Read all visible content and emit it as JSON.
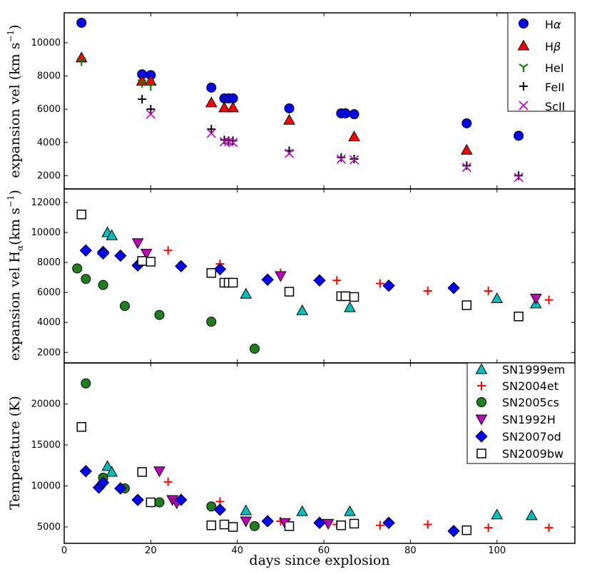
{
  "figure": {
    "xlabel": "days since explosion",
    "x_ticks": [
      "0",
      "20",
      "40",
      "60",
      "80",
      "100"
    ],
    "xlim": [
      0,
      118
    ]
  },
  "colors": {
    "blue": "#0000ff",
    "red": "#ff0000",
    "green": "#007f00",
    "black": "#000000",
    "magenta": "#bf00bf",
    "cyan": "#00bfbf",
    "purple": "#bf00bf",
    "green_fill": "#1f7f1f",
    "white": "#ffffff"
  },
  "chart_data": [
    {
      "type": "scatter",
      "title": "",
      "ylabel_main": "expansion vel (km s",
      "ylabel_sup": "−1",
      "ylabel_tail": ")",
      "ylim": [
        1200,
        11800
      ],
      "y_ticks": [
        "2000",
        "4000",
        "6000",
        "8000",
        "10000"
      ],
      "legend_position": "top-right",
      "series": [
        {
          "name": "Hα",
          "label_main": "H",
          "label_greek": "α",
          "marker": "circle",
          "color": "#0000ff",
          "x": [
            4,
            18,
            20,
            34,
            37,
            38,
            39,
            52,
            64,
            65,
            67,
            93,
            105
          ],
          "y": [
            11200,
            8100,
            8050,
            7300,
            6650,
            6650,
            6650,
            6050,
            5750,
            5750,
            5700,
            5150,
            4400
          ]
        },
        {
          "name": "Hβ",
          "label_main": "H",
          "label_greek": "β",
          "marker": "triangle",
          "color": "#ff0000",
          "x": [
            4,
            18,
            20,
            34,
            37,
            39,
            52,
            67,
            93
          ],
          "y": [
            9100,
            7700,
            7700,
            6400,
            6100,
            6100,
            5350,
            4350,
            3550
          ]
        },
        {
          "name": "HeI",
          "label_main": "HeI",
          "marker": "tri_down",
          "color": "#007f00",
          "x": [
            4,
            18,
            20
          ],
          "y": [
            8900,
            7600,
            7400
          ]
        },
        {
          "name": "FeII",
          "label_main": "FeII",
          "marker": "plus",
          "color": "#000000",
          "x": [
            18,
            20,
            34,
            37,
            38,
            39,
            52,
            64,
            67,
            93,
            105
          ],
          "y": [
            6600,
            6000,
            4800,
            4150,
            4100,
            4100,
            3500,
            3100,
            3000,
            2600,
            2000
          ]
        },
        {
          "name": "ScII",
          "label_main": "ScII",
          "marker": "x",
          "color": "#bf00bf",
          "x": [
            20,
            34,
            37,
            38,
            39,
            52,
            64,
            67,
            93,
            105
          ],
          "y": [
            5700,
            4550,
            4050,
            4050,
            4000,
            3350,
            3000,
            2950,
            2500,
            1900
          ]
        }
      ]
    },
    {
      "type": "scatter",
      "title": "",
      "ylabel_main": "expansion vel H",
      "ylabel_sub": "α",
      "ylabel_tail": "(km s",
      "ylabel_sup": "−1",
      "ylabel_end": ")",
      "ylim": [
        1300,
        12900
      ],
      "y_ticks": [
        "2000",
        "4000",
        "6000",
        "8000",
        "10000",
        "12000"
      ],
      "series": [
        {
          "name": "SN1999em",
          "marker": "triangle",
          "color": "#00bfbf",
          "x": [
            10,
            11,
            42,
            55,
            66,
            100,
            109
          ],
          "y": [
            10000,
            9800,
            5900,
            4800,
            5000,
            5600,
            5250
          ]
        },
        {
          "name": "SN2004et",
          "marker": "plus",
          "color": "#ff0000",
          "x": [
            24,
            36,
            50,
            63,
            73,
            84,
            98,
            112
          ],
          "y": [
            8800,
            7900,
            7300,
            6800,
            6600,
            6100,
            6100,
            5500
          ]
        },
        {
          "name": "SN2005cs",
          "marker": "circle",
          "color": "#1f7f1f",
          "x": [
            3,
            5,
            9,
            14,
            22,
            34,
            44
          ],
          "y": [
            7600,
            6900,
            6500,
            5100,
            4500,
            4050,
            2250
          ]
        },
        {
          "name": "SN1992H",
          "marker": "tri_down",
          "color": "#bf00bf",
          "x": [
            17,
            19,
            50,
            109
          ],
          "y": [
            9300,
            8600,
            7100,
            5600
          ]
        },
        {
          "name": "SN2007od",
          "marker": "diamond",
          "color": "#0000ff",
          "x": [
            5,
            9,
            9,
            13,
            17,
            27,
            36,
            47,
            59,
            75,
            90
          ],
          "y": [
            8800,
            8700,
            8600,
            8450,
            7800,
            7750,
            7550,
            6850,
            6800,
            6450,
            6300
          ]
        },
        {
          "name": "SN2009bw",
          "marker": "square",
          "color": "#ffffff",
          "x": [
            4,
            18,
            20,
            34,
            37,
            38,
            39,
            52,
            64,
            65,
            67,
            93,
            105
          ],
          "y": [
            11200,
            8100,
            8050,
            7300,
            6650,
            6650,
            6650,
            6050,
            5750,
            5750,
            5700,
            5150,
            4400
          ]
        }
      ]
    },
    {
      "type": "scatter",
      "title": "",
      "ylabel_main": "Temperature (K)",
      "ylim": [
        3000,
        25000
      ],
      "y_ticks": [
        "5000",
        "10000",
        "15000",
        "20000"
      ],
      "legend_position": "top-right",
      "series": [
        {
          "name": "SN1999em",
          "marker": "triangle",
          "color": "#00bfbf",
          "x": [
            10,
            11,
            42,
            55,
            66,
            100,
            108
          ],
          "y": [
            12400,
            11700,
            7000,
            6900,
            6900,
            6500,
            6400
          ]
        },
        {
          "name": "SN2004et",
          "marker": "plus",
          "color": "#ff0000",
          "x": [
            24,
            36,
            50,
            63,
            73,
            84,
            98,
            112
          ],
          "y": [
            10500,
            8100,
            5700,
            5300,
            5200,
            5300,
            4900,
            4900
          ]
        },
        {
          "name": "SN2005cs",
          "marker": "circle",
          "color": "#1f7f1f",
          "x": [
            5,
            9,
            14,
            22,
            34,
            44
          ],
          "y": [
            22500,
            11000,
            9700,
            8000,
            7500,
            5100
          ]
        },
        {
          "name": "SN1992H",
          "marker": "tri_down",
          "color": "#bf00bf",
          "x": [
            22,
            25,
            26,
            42,
            51,
            61
          ],
          "y": [
            11800,
            8300,
            7900,
            5700,
            5500,
            5400
          ]
        },
        {
          "name": "SN2007od",
          "marker": "diamond",
          "color": "#0000ff",
          "x": [
            5,
            8,
            9,
            13,
            17,
            27,
            36,
            47,
            59,
            75,
            90
          ],
          "y": [
            11800,
            9800,
            10400,
            9700,
            8300,
            8300,
            7100,
            5700,
            5500,
            5500,
            4500
          ]
        },
        {
          "name": "SN2009bw",
          "marker": "square",
          "color": "#ffffff",
          "x": [
            4,
            18,
            20,
            34,
            37,
            39,
            52,
            64,
            67,
            93
          ],
          "y": [
            17200,
            11700,
            8000,
            5200,
            5300,
            5000,
            5100,
            5200,
            5400,
            4600
          ]
        }
      ]
    }
  ]
}
